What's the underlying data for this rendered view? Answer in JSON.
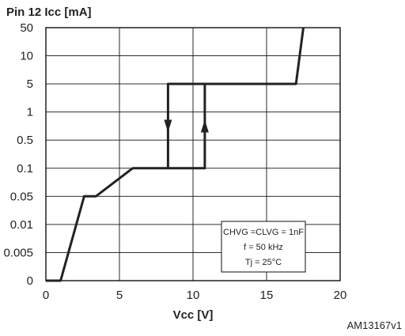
{
  "chart_data": {
    "type": "line",
    "ylabel": "Pin 12 Icc [mA]",
    "xlabel": "Vcc [V]",
    "reference": "AM13167v1",
    "x_ticks": [
      0,
      5,
      10,
      15,
      20
    ],
    "y_ticks": [
      "0",
      "0.005",
      "0.01",
      "0.05",
      "0.1",
      "0.5",
      "1",
      "5",
      "10",
      "50"
    ],
    "xlim": [
      0,
      20
    ],
    "grid": true,
    "annotation_box": {
      "line1": "CHVG =CLVG = 1nF",
      "line2": "f = 50 kHz",
      "line3": "Tj = 25°C",
      "placement": "bottom-right"
    },
    "series": [
      {
        "x": [
          0,
          1.0,
          2.6,
          3.4,
          5.9,
          10.8,
          10.8,
          12.5,
          15.0,
          17.0,
          17.5
        ],
        "y": [
          "0",
          "0",
          "0.05",
          "0.05",
          "0.1",
          "0.1",
          "5",
          "5",
          "5",
          "5",
          "50"
        ]
      },
      {
        "x": [
          8.3,
          8.3,
          8.8,
          9.8,
          10.8
        ],
        "y": [
          "0.1",
          "5",
          "5",
          "5",
          "5"
        ]
      }
    ],
    "arrows": [
      {
        "x": 8.3,
        "direction": "down"
      },
      {
        "x": 10.8,
        "direction": "up"
      }
    ]
  }
}
